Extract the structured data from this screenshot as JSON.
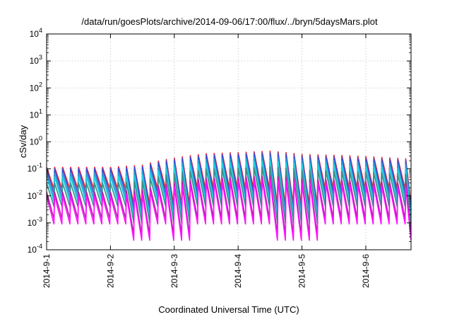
{
  "chart_data": {
    "type": "line",
    "title": "/data/run/goesPlots/archive/2014-09-06/17:00/flux/../bryn/5daysMars.plot",
    "xlabel": "Coordinated Universal Time (UTC)",
    "ylabel": "cSv/day",
    "yscale": "log",
    "ylim": [
      0.0001,
      10000
    ],
    "y_ticks": [
      {
        "base": "10",
        "exp": "-4"
      },
      {
        "base": "10",
        "exp": "-3"
      },
      {
        "base": "10",
        "exp": "-2"
      },
      {
        "base": "10",
        "exp": "-1"
      },
      {
        "base": "10",
        "exp": "0"
      },
      {
        "base": "10",
        "exp": "1"
      },
      {
        "base": "10",
        "exp": "2"
      },
      {
        "base": "10",
        "exp": "3"
      },
      {
        "base": "10",
        "exp": "4"
      }
    ],
    "xlim": [
      "2014-09-01T00:00",
      "2014-09-06T17:00"
    ],
    "x_ticks": [
      "2014-9-1",
      "2014-9-2",
      "2014-9-3",
      "2014-9-4",
      "2014-9-5",
      "2014-9-6"
    ],
    "grid": true,
    "legend": "none",
    "pattern": {
      "period_hours": 3,
      "peak_envelope": [
        [
          "2014-09-01T00:00",
          0.1
        ],
        [
          "2014-09-02T00:00",
          0.1
        ],
        [
          "2014-09-02T12:00",
          0.12
        ],
        [
          "2014-09-03T00:00",
          0.22
        ],
        [
          "2014-09-03T12:00",
          0.32
        ],
        [
          "2014-09-04T00:00",
          0.35
        ],
        [
          "2014-09-04T12:00",
          0.4
        ],
        [
          "2014-09-05T00:00",
          0.3
        ],
        [
          "2014-09-05T12:00",
          0.28
        ],
        [
          "2014-09-06T00:00",
          0.25
        ],
        [
          "2014-09-06T17:00",
          0.2
        ]
      ],
      "drop_events": [
        "2014-09-02T09:00",
        "2014-09-03T00:00",
        "2014-09-04T15:00",
        "2014-09-05T00:00",
        "2014-09-06T17:00"
      ]
    },
    "series": [
      {
        "color": "#e8262d",
        "peak_factor": 1.15,
        "min_value": 0.018
      },
      {
        "color": "#3a4fd8",
        "peak_factor": 1.0,
        "min_value": 0.012
      },
      {
        "color": "#2a9bd9",
        "peak_factor": 0.7,
        "min_value": 0.008
      },
      {
        "color": "#1fd3e3",
        "peak_factor": 0.5,
        "min_value": 0.006
      },
      {
        "color": "#3a8f8a",
        "peak_factor": 0.3,
        "min_value": 0.004
      },
      {
        "color": "#b21ea9",
        "peak_factor": 0.14,
        "min_value": 0.0014
      },
      {
        "color": "#ff10ff",
        "peak_factor": 0.1,
        "min_value": 0.0009
      }
    ]
  }
}
